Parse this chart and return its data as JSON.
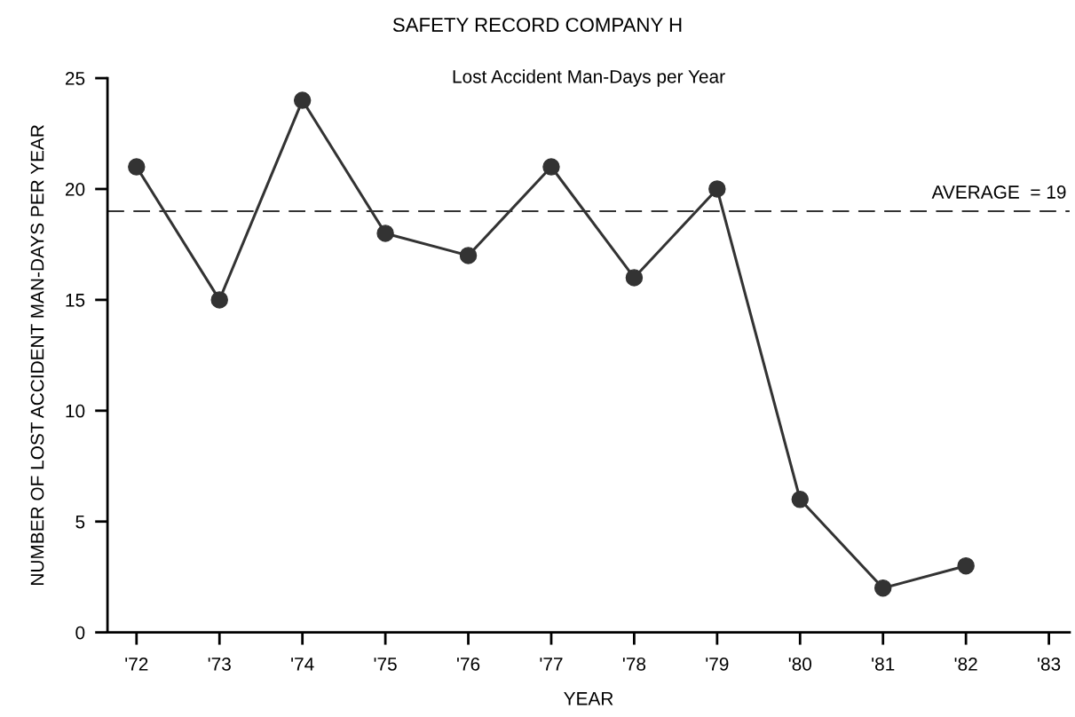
{
  "chart_data": {
    "type": "line",
    "title": "SAFETY RECORD COMPANY H",
    "subtitle": "Lost Accident Man-Days per Year",
    "xlabel": "YEAR",
    "ylabel": "NUMBER OF LOST ACCIDENT MAN-DAYS PER YEAR",
    "categories": [
      "'72",
      "'73",
      "'74",
      "'75",
      "'76",
      "'77",
      "'78",
      "'79",
      "'80",
      "'81",
      "'82",
      "'83"
    ],
    "series": [
      {
        "color": "#333333",
        "values": [
          21,
          15,
          24,
          18,
          17,
          21,
          16,
          20,
          6,
          2,
          3,
          null
        ]
      }
    ],
    "ylim": [
      0,
      25
    ],
    "yticks": [
      0,
      5,
      10,
      15,
      20,
      25
    ],
    "ref_lines": [
      {
        "axis": "y",
        "value": 19,
        "label": "AVERAGE  = 19",
        "color": "#333333",
        "line_style": "dashed"
      }
    ],
    "marker": "circle",
    "line_style": "solid",
    "grid": false,
    "legend": false
  }
}
